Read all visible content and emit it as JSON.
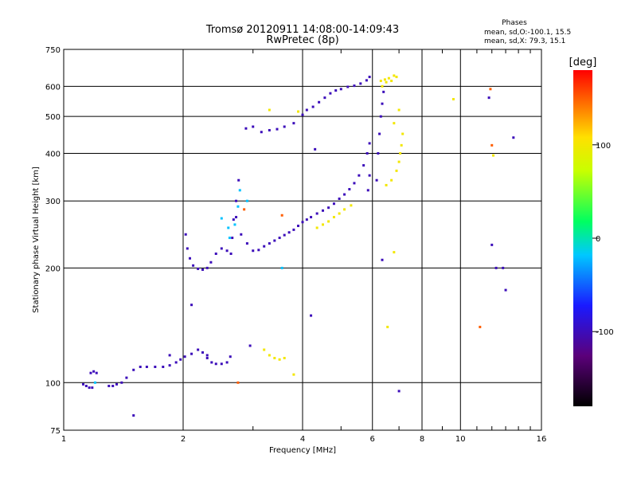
{
  "chart_data": {
    "type": "scatter",
    "title": "Tromsø 20120911 14:08:00-14:09:43",
    "subtitle": "RwPretec (8p)",
    "xlabel": "Frequency [MHz]",
    "ylabel": "Stationary phase Virtual Height [km]",
    "x_scale": "log",
    "y_scale": "log",
    "xlim": [
      1,
      16
    ],
    "ylim": [
      75,
      750
    ],
    "x_ticks": [
      1,
      2,
      4,
      6,
      8,
      10,
      16
    ],
    "x_tick_labels": [
      "1",
      "2",
      "4",
      "6",
      "8",
      "10",
      "16"
    ],
    "x_grid": [
      2,
      4,
      6,
      8,
      10
    ],
    "y_ticks": [
      75,
      100,
      200,
      300,
      400,
      500,
      600,
      750
    ],
    "y_tick_labels": [
      "75",
      "100",
      "200",
      "300",
      "400",
      "500",
      "600",
      "750"
    ],
    "y_grid": [
      100,
      200,
      300,
      400,
      500,
      600
    ],
    "grid": true,
    "legend": {
      "title": "Phases",
      "lines": [
        "mean, sd,O:-100.1, 15.5",
        "mean, sd,X:  79.3, 15.1"
      ]
    },
    "colorbar": {
      "label": "[deg]",
      "range": [
        -180,
        180
      ],
      "ticks": [
        100,
        0,
        -100
      ],
      "tick_labels": [
        "100",
        "0",
        "-100"
      ]
    },
    "series": [
      {
        "points": [
          [
            1.12,
            99
          ],
          [
            1.14,
            98
          ],
          [
            1.16,
            97
          ],
          [
            1.18,
            97
          ],
          [
            1.17,
            106
          ],
          [
            1.19,
            107
          ],
          [
            1.21,
            106
          ],
          [
            1.3,
            98
          ],
          [
            1.33,
            98
          ],
          [
            1.36,
            99
          ],
          [
            1.4,
            100
          ],
          [
            1.44,
            103
          ],
          [
            1.5,
            108
          ],
          [
            1.56,
            110
          ],
          [
            1.62,
            110
          ],
          [
            1.7,
            110
          ],
          [
            1.78,
            110
          ],
          [
            1.85,
            111
          ],
          [
            1.92,
            113
          ],
          [
            1.97,
            115
          ],
          [
            2.02,
            117
          ],
          [
            2.1,
            119
          ],
          [
            2.18,
            122
          ],
          [
            2.24,
            120
          ],
          [
            2.3,
            116
          ],
          [
            2.36,
            113
          ],
          [
            2.42,
            112
          ],
          [
            2.5,
            112
          ],
          [
            2.58,
            113
          ],
          [
            2.63,
            117
          ],
          [
            2.03,
            245
          ],
          [
            2.05,
            225
          ],
          [
            2.08,
            212
          ],
          [
            2.12,
            203
          ],
          [
            2.18,
            199
          ],
          [
            2.24,
            198
          ],
          [
            2.3,
            200
          ],
          [
            2.35,
            207
          ],
          [
            2.42,
            218
          ],
          [
            2.5,
            225
          ],
          [
            2.58,
            222
          ],
          [
            2.64,
            218
          ],
          [
            2.66,
            240
          ],
          [
            2.68,
            268
          ],
          [
            2.72,
            300
          ],
          [
            2.76,
            340
          ],
          [
            2.72,
            272
          ],
          [
            2.8,
            245
          ],
          [
            2.9,
            232
          ],
          [
            3.0,
            222
          ],
          [
            3.1,
            223
          ],
          [
            3.2,
            228
          ],
          [
            3.3,
            232
          ],
          [
            3.4,
            236
          ],
          [
            3.5,
            240
          ],
          [
            3.6,
            244
          ],
          [
            3.7,
            248
          ],
          [
            3.8,
            252
          ],
          [
            3.9,
            258
          ],
          [
            4.0,
            264
          ],
          [
            4.1,
            268
          ],
          [
            4.2,
            272
          ],
          [
            4.35,
            278
          ],
          [
            4.5,
            283
          ],
          [
            4.65,
            288
          ],
          [
            4.8,
            295
          ],
          [
            4.95,
            304
          ],
          [
            5.1,
            312
          ],
          [
            5.25,
            322
          ],
          [
            5.4,
            334
          ],
          [
            5.55,
            350
          ],
          [
            5.7,
            372
          ],
          [
            5.82,
            400
          ],
          [
            5.9,
            425
          ],
          [
            5.85,
            320
          ],
          [
            5.9,
            350
          ],
          [
            2.88,
            465
          ],
          [
            3.0,
            470
          ],
          [
            3.15,
            455
          ],
          [
            3.3,
            460
          ],
          [
            3.45,
            463
          ],
          [
            3.6,
            470
          ],
          [
            3.8,
            480
          ],
          [
            4.0,
            505
          ],
          [
            4.1,
            520
          ],
          [
            4.25,
            530
          ],
          [
            4.4,
            545
          ],
          [
            4.55,
            560
          ],
          [
            4.7,
            575
          ],
          [
            4.85,
            585
          ],
          [
            5.0,
            590
          ],
          [
            5.2,
            598
          ],
          [
            5.4,
            602
          ],
          [
            5.6,
            610
          ],
          [
            5.8,
            622
          ],
          [
            5.9,
            635
          ],
          [
            6.15,
            340
          ],
          [
            6.2,
            400
          ],
          [
            6.25,
            450
          ],
          [
            6.3,
            500
          ],
          [
            6.35,
            540
          ],
          [
            6.4,
            580
          ],
          [
            1.5,
            82
          ],
          [
            2.1,
            160
          ],
          [
            2.95,
            125
          ],
          [
            4.2,
            150
          ],
          [
            4.3,
            410
          ],
          [
            7.0,
            95
          ],
          [
            11.8,
            560
          ],
          [
            12.0,
            230
          ],
          [
            12.3,
            200
          ],
          [
            13.6,
            440
          ],
          [
            12.8,
            200
          ],
          [
            13.0,
            175
          ],
          [
            6.35,
            210
          ],
          [
            1.85,
            118
          ],
          [
            2.3,
            118
          ]
        ],
        "phase": -100
      },
      {
        "points": [
          [
            2.5,
            270
          ],
          [
            2.6,
            255
          ],
          [
            2.7,
            260
          ],
          [
            2.75,
            290
          ],
          [
            2.78,
            320
          ],
          [
            2.62,
            240
          ],
          [
            1.2,
            100
          ],
          [
            2.9,
            300
          ],
          [
            3.55,
            200
          ]
        ],
        "phase": -20
      },
      {
        "points": [
          [
            3.2,
            122
          ],
          [
            3.3,
            118
          ],
          [
            3.4,
            116
          ],
          [
            3.5,
            115
          ],
          [
            3.6,
            116
          ],
          [
            4.35,
            255
          ],
          [
            4.5,
            260
          ],
          [
            4.65,
            265
          ],
          [
            4.8,
            272
          ],
          [
            4.95,
            278
          ],
          [
            5.1,
            285
          ],
          [
            5.3,
            292
          ],
          [
            6.3,
            620
          ],
          [
            6.45,
            625
          ],
          [
            6.6,
            630
          ],
          [
            6.8,
            640
          ],
          [
            6.9,
            635
          ],
          [
            6.5,
            330
          ],
          [
            6.7,
            340
          ],
          [
            6.9,
            360
          ],
          [
            7.0,
            380
          ],
          [
            7.05,
            400
          ],
          [
            7.1,
            420
          ],
          [
            7.15,
            450
          ],
          [
            6.8,
            480
          ],
          [
            7.0,
            520
          ],
          [
            6.35,
            600
          ],
          [
            6.5,
            615
          ],
          [
            6.7,
            620
          ],
          [
            3.3,
            520
          ],
          [
            3.9,
            515
          ],
          [
            9.6,
            555
          ],
          [
            12.1,
            395
          ],
          [
            6.55,
            140
          ],
          [
            6.8,
            220
          ],
          [
            3.8,
            105
          ]
        ],
        "phase": 100
      },
      {
        "points": [
          [
            2.75,
            100
          ],
          [
            2.85,
            285
          ],
          [
            11.2,
            140
          ],
          [
            12.0,
            420
          ],
          [
            11.9,
            590
          ],
          [
            3.55,
            275
          ]
        ],
        "phase": 150
      }
    ]
  }
}
